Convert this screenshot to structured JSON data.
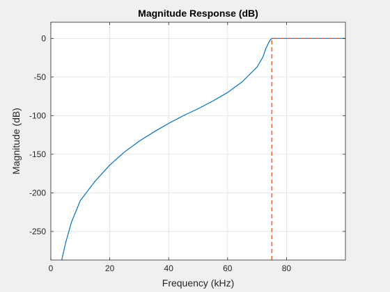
{
  "chart_data": {
    "type": "line",
    "title": "Magnitude Response (dB)",
    "xlabel": "Frequency (kHz)",
    "ylabel": "Magnitude (dB)",
    "xlim": [
      0,
      100
    ],
    "ylim": [
      -287,
      21
    ],
    "xticks": [
      0,
      20,
      40,
      60,
      80
    ],
    "xtick_labels": [
      "0",
      "20",
      "40",
      "60",
      "80"
    ],
    "yticks": [
      0,
      -50,
      -100,
      -150,
      -200,
      -250
    ],
    "ytick_labels": [
      "0",
      "-50",
      "-100",
      "-150",
      "-200",
      "-250"
    ],
    "grid": true,
    "series": [
      {
        "style": "solid",
        "color": "#0072bd",
        "x": [
          3.7,
          5,
          7,
          10,
          15,
          20,
          25,
          30,
          35,
          40,
          45,
          50,
          55,
          60,
          65,
          70,
          72,
          73,
          74,
          74.6,
          75,
          100
        ],
        "y": [
          -287,
          -265,
          -238,
          -210,
          -185,
          -164,
          -147,
          -133,
          -121,
          -110,
          -100,
          -91,
          -81,
          -70,
          -56,
          -37,
          -24,
          -13,
          -5,
          -1.5,
          0,
          0
        ]
      },
      {
        "style": "dashed",
        "color": "#d95319",
        "x": [
          75,
          75,
          100
        ],
        "y": [
          -287,
          0,
          0
        ]
      }
    ]
  }
}
